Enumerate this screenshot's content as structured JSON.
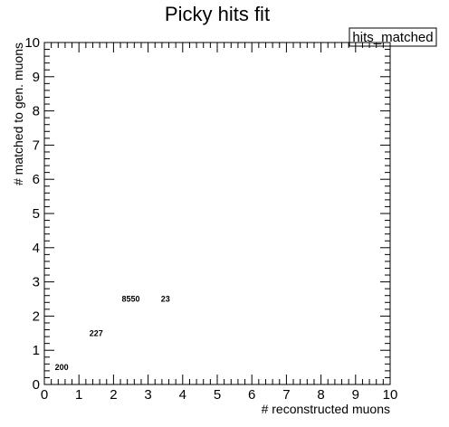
{
  "chart_data": {
    "type": "heatmap",
    "title": "Picky hits fit",
    "xlabel": "# reconstructed muons",
    "ylabel": "# matched to gen. muons",
    "xlim": [
      0,
      10
    ],
    "ylim": [
      0,
      10
    ],
    "xticks": [
      "0",
      "1",
      "2",
      "3",
      "4",
      "5",
      "6",
      "7",
      "8",
      "9",
      "10"
    ],
    "yticks": [
      "0",
      "1",
      "2",
      "3",
      "4",
      "5",
      "6",
      "7",
      "8",
      "9",
      "10"
    ],
    "legend": {
      "entry": "hits_matched",
      "placement": "top-right"
    },
    "grid": false,
    "cells": [
      {
        "x": 0.5,
        "y": 0.5,
        "value": "200"
      },
      {
        "x": 1.5,
        "y": 1.5,
        "value": "227"
      },
      {
        "x": 2.5,
        "y": 2.5,
        "value": "8550"
      },
      {
        "x": 3.5,
        "y": 2.5,
        "value": "23"
      }
    ]
  }
}
